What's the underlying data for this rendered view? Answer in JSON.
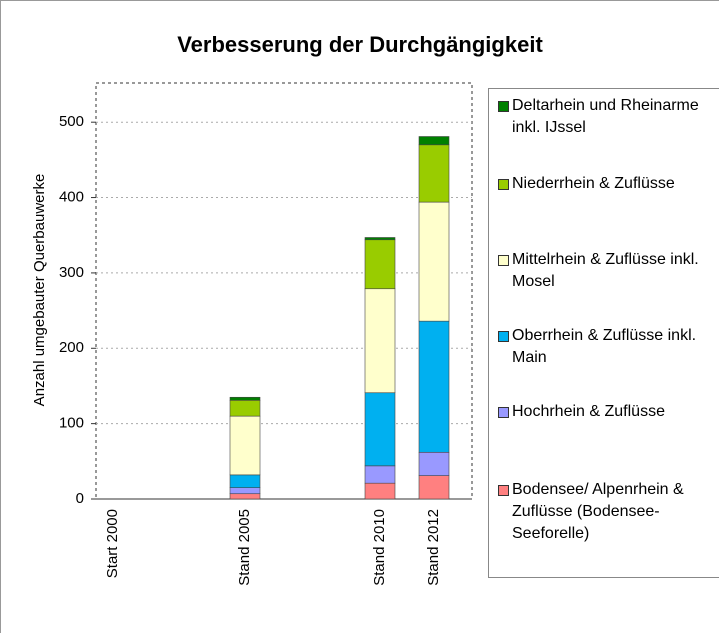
{
  "chart_data": {
    "type": "stacked-bar",
    "title": "Verbesserung der Durchgängigkeit",
    "y_label": "Anzahl umgebauter Querbauwerke",
    "categories": [
      "Start 2000",
      "Stand 2005",
      "Stand 2010",
      "Stand 2012"
    ],
    "series": [
      {
        "name": "Bodensee/ Alpenrhein & Zuflüsse (Bodensee-Seeforelle)",
        "color": "#ff8080",
        "values": [
          0,
          7,
          21,
          31
        ]
      },
      {
        "name": "Hochrhein & Zuflüsse",
        "color": "#9999ff",
        "values": [
          0,
          8,
          23,
          31
        ]
      },
      {
        "name": "Oberrhein & Zuflüsse inkl. Main",
        "color": "#00b0f0",
        "values": [
          0,
          17,
          97,
          174
        ]
      },
      {
        "name": "Mittelrhein & Zuflüsse inkl. Mosel",
        "color": "#ffffcc",
        "values": [
          0,
          78,
          138,
          158
        ]
      },
      {
        "name": "Niederrhein & Zuflüsse",
        "color": "#99cc00",
        "values": [
          0,
          21,
          65,
          76
        ]
      },
      {
        "name": "Deltarhein und Rheinarme inkl. IJssel",
        "color": "#008000",
        "values": [
          0,
          4,
          3,
          11
        ]
      }
    ],
    "ylim": [
      0,
      552
    ],
    "yticks": [
      0,
      100,
      200,
      300,
      400,
      500
    ],
    "grid": true
  }
}
